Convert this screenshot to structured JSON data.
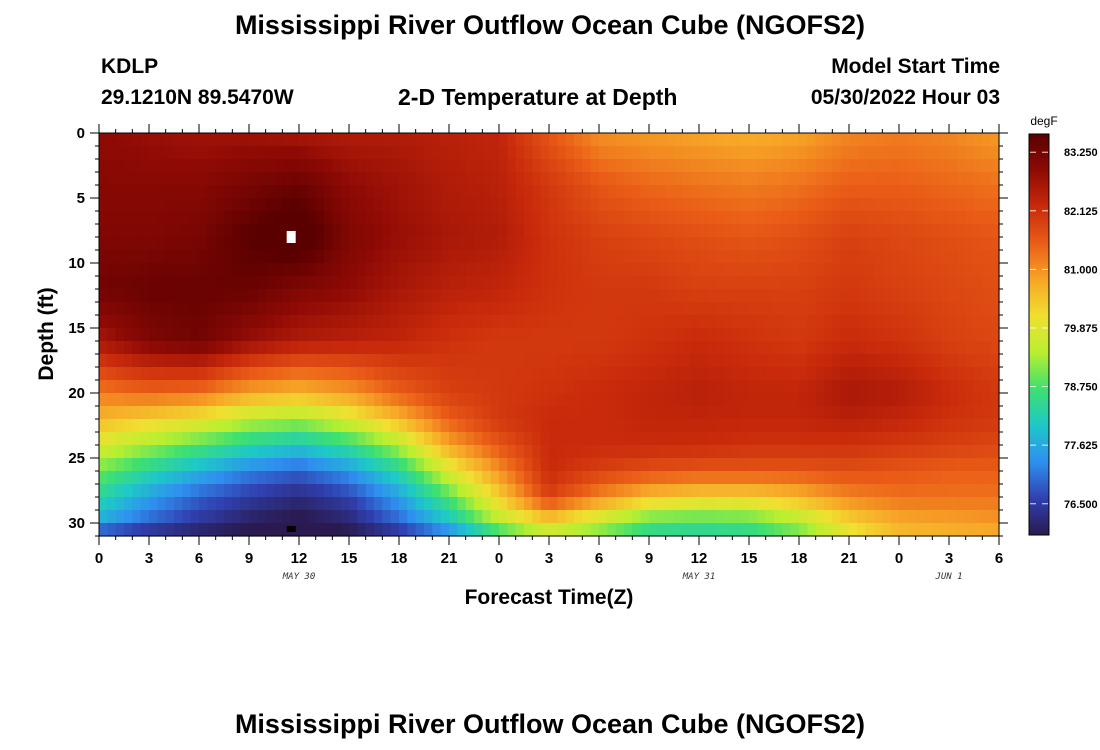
{
  "header": {
    "main_title": "Mississippi River Outflow Ocean Cube (NGOFS2)",
    "station_id": "KDLP",
    "station_coords": "29.1210N  89.5470W",
    "plot_title": "2-D Temperature at Depth",
    "model_start_label": "Model Start Time",
    "model_start_value": "05/30/2022 Hour 03"
  },
  "footer": {
    "repeated_title": "Mississippi River Outflow Ocean Cube (NGOFS2)"
  },
  "chart_data": {
    "type": "heatmap",
    "title": "2-D Temperature at Depth",
    "xlabel": "Forecast Time(Z)",
    "ylabel": "Depth (ft)",
    "x_ticks": [
      "0",
      "3",
      "6",
      "9",
      "12",
      "15",
      "18",
      "21",
      "0",
      "3",
      "6",
      "9",
      "12",
      "15",
      "18",
      "21",
      "0",
      "3",
      "6"
    ],
    "x_hours_since_may30_00z": [
      0,
      3,
      6,
      9,
      12,
      15,
      18,
      21,
      24,
      27,
      30,
      33,
      36,
      39,
      42,
      45,
      48,
      51,
      54
    ],
    "xlim_hours": [
      0,
      54
    ],
    "date_labels": [
      {
        "text": "MAY 30",
        "hour": 12
      },
      {
        "text": "MAY 31",
        "hour": 36
      },
      {
        "text": "JUN 1",
        "hour": 51
      }
    ],
    "y_ticks": [
      "0",
      "5",
      "10",
      "15",
      "20",
      "25",
      "30"
    ],
    "ylim": [
      0,
      31
    ],
    "y_inverted": true,
    "colorbar": {
      "unit": "degF",
      "ticks": [
        "83.250",
        "82.125",
        "81.000",
        "79.875",
        "78.750",
        "77.625",
        "76.500"
      ],
      "range": [
        75.9,
        83.6
      ],
      "colors": [
        "#2a1a50",
        "#3040b0",
        "#2f8ff0",
        "#1ec8c8",
        "#3ee070",
        "#b8ef30",
        "#f0e030",
        "#f7a627",
        "#ea5d17",
        "#c92a0b",
        "#8f0a05",
        "#5a0000"
      ]
    },
    "temperature_grid": {
      "hours": [
        0,
        3,
        6,
        9,
        12,
        15,
        18,
        21,
        24,
        27,
        30,
        33,
        36,
        39,
        42,
        45,
        48,
        51,
        54
      ],
      "depths_ft": [
        0,
        4,
        8,
        12,
        16,
        20,
        22,
        24,
        26,
        28,
        30,
        31
      ],
      "values_degF": [
        [
          82.9,
          82.8,
          82.7,
          82.7,
          82.6,
          82.5,
          82.5,
          82.4,
          82.3,
          81.6,
          81.0,
          80.9,
          80.8,
          80.7,
          80.8,
          81.1,
          81.2,
          81.1,
          80.9
        ],
        [
          83.0,
          83.0,
          83.0,
          83.2,
          83.4,
          82.9,
          82.7,
          82.5,
          82.4,
          82.0,
          81.6,
          81.4,
          81.3,
          81.2,
          81.3,
          81.5,
          81.5,
          81.4,
          81.3
        ],
        [
          83.1,
          83.1,
          83.2,
          83.6,
          83.9,
          83.1,
          82.8,
          82.6,
          82.5,
          82.1,
          81.9,
          81.8,
          81.7,
          81.6,
          81.7,
          81.9,
          81.8,
          81.7,
          81.6
        ],
        [
          83.3,
          83.4,
          83.4,
          83.4,
          83.1,
          82.9,
          82.6,
          82.4,
          82.3,
          82.1,
          82.0,
          82.0,
          81.9,
          81.9,
          81.9,
          82.0,
          81.9,
          81.8,
          81.7
        ],
        [
          82.6,
          83.1,
          83.3,
          82.8,
          82.5,
          82.4,
          82.3,
          82.1,
          82.0,
          82.0,
          82.0,
          82.1,
          82.2,
          82.1,
          82.0,
          82.2,
          82.1,
          81.9,
          81.8
        ],
        [
          81.2,
          81.4,
          81.3,
          80.8,
          80.6,
          80.9,
          81.5,
          81.9,
          82.0,
          82.1,
          82.2,
          82.3,
          82.4,
          82.3,
          82.3,
          82.6,
          82.5,
          82.2,
          82.0
        ],
        [
          80.6,
          80.3,
          80.0,
          79.5,
          79.3,
          79.8,
          80.6,
          81.5,
          82.0,
          82.2,
          82.2,
          82.3,
          82.3,
          82.3,
          82.3,
          82.4,
          82.3,
          82.1,
          82.0
        ],
        [
          79.8,
          79.3,
          78.8,
          78.3,
          78.0,
          78.5,
          79.4,
          80.8,
          81.6,
          82.2,
          82.2,
          82.2,
          82.2,
          82.1,
          82.1,
          82.1,
          82.0,
          81.9,
          81.8
        ],
        [
          79.0,
          78.3,
          77.7,
          77.2,
          76.9,
          77.4,
          78.3,
          79.8,
          81.0,
          82.2,
          81.9,
          81.7,
          81.6,
          81.6,
          81.6,
          81.7,
          81.6,
          81.5,
          81.5
        ],
        [
          78.3,
          77.5,
          76.9,
          76.5,
          76.2,
          76.6,
          77.5,
          78.8,
          80.3,
          81.9,
          81.1,
          80.5,
          80.3,
          80.3,
          80.6,
          81.1,
          81.3,
          81.3,
          81.3
        ],
        [
          77.6,
          76.9,
          76.4,
          76.0,
          75.8,
          76.1,
          76.9,
          77.9,
          79.4,
          80.2,
          79.5,
          78.7,
          78.6,
          78.7,
          79.3,
          80.2,
          80.7,
          80.8,
          80.9
        ],
        [
          76.4,
          76.1,
          75.9,
          75.8,
          75.6,
          75.8,
          76.2,
          77.0,
          78.3,
          79.3,
          78.9,
          78.4,
          78.3,
          78.4,
          78.9,
          79.9,
          80.5,
          80.6,
          80.7
        ]
      ]
    },
    "missing_cells": [
      {
        "hour": 11.5,
        "depth_ft": 8
      },
      {
        "hour": 11.5,
        "depth_ft": 31
      }
    ],
    "grid": false
  }
}
